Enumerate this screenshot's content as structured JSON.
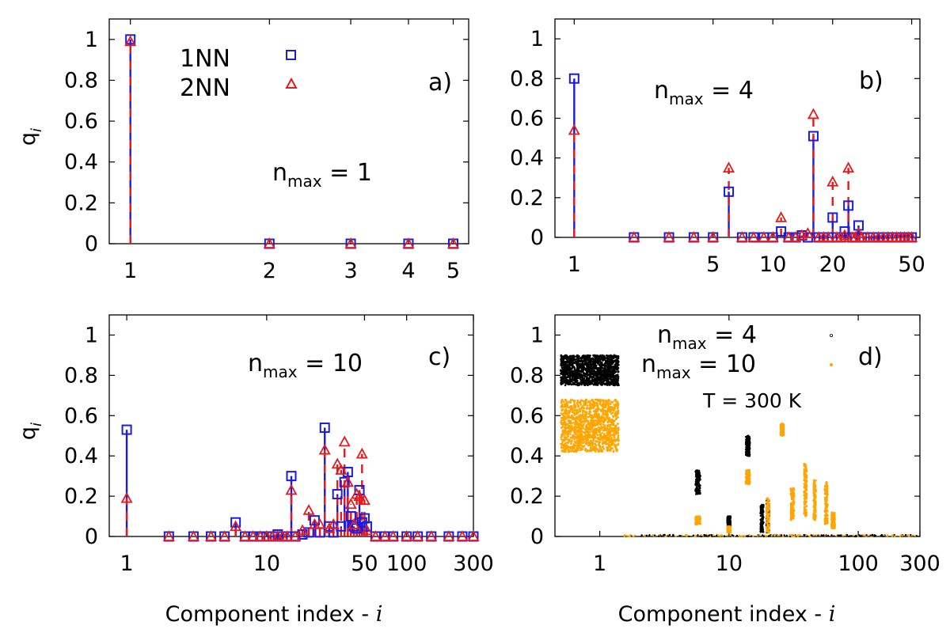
{
  "figure": {
    "ylabel": "q",
    "ylabel_sub": "i",
    "xlabel_prefix": "Component index - ",
    "xlabel_var": "i",
    "legend": {
      "s1": "1NN",
      "s2": "2NN"
    },
    "legend_d": {
      "s1": "4",
      "s2": "10"
    },
    "temperature": "T = 300 K",
    "colors": {
      "nn1": "#1a1ae6",
      "nn2": "#e61a1a",
      "nmax4": "#000000",
      "nmax10": "#ffa500"
    }
  },
  "chart_data": [
    {
      "type": "scatter",
      "panel": "a)",
      "annotation": {
        "prefix": "n",
        "sub": "max",
        "value": "= 1"
      },
      "xscale": "log",
      "xlim": [
        0.9,
        5.4
      ],
      "ylim": [
        0,
        1.1
      ],
      "xticks": [
        1,
        2,
        3,
        4,
        5
      ],
      "xtick_labels": [
        "1",
        "2",
        "3",
        "4",
        "5"
      ],
      "yticks": [
        0,
        0.2,
        0.4,
        0.6,
        0.8,
        1
      ],
      "ytick_labels": [
        "0",
        "0.2",
        "0.4",
        "0.6",
        "0.8",
        "1"
      ],
      "series": [
        {
          "name": "1NN",
          "marker": "square",
          "points": [
            [
              1,
              1.0
            ],
            [
              2,
              0
            ],
            [
              3,
              0
            ],
            [
              4,
              0
            ],
            [
              5,
              0
            ]
          ]
        },
        {
          "name": "2NN",
          "marker": "triangle",
          "points": [
            [
              1,
              0.99
            ],
            [
              2,
              0
            ],
            [
              3,
              0
            ],
            [
              4,
              0
            ],
            [
              5,
              0
            ]
          ]
        }
      ]
    },
    {
      "type": "scatter",
      "panel": "b)",
      "annotation": {
        "prefix": "n",
        "sub": "max",
        "value": "= 4"
      },
      "xscale": "log",
      "xlim": [
        0.8,
        55
      ],
      "ylim": [
        0,
        1.1
      ],
      "xticks": [
        1,
        5,
        10,
        20,
        50
      ],
      "xtick_labels": [
        "1",
        "5",
        "10",
        "20",
        "50"
      ],
      "yticks": [
        0,
        0.2,
        0.4,
        0.6,
        0.8,
        1
      ],
      "ytick_labels": [
        "0",
        "0.2",
        "0.4",
        "0.6",
        "0.8",
        "1"
      ],
      "series": [
        {
          "name": "1NN",
          "marker": "square",
          "points": [
            [
              1,
              0.8
            ],
            [
              2,
              0
            ],
            [
              3,
              0
            ],
            [
              4,
              0
            ],
            [
              5,
              0
            ],
            [
              6,
              0.23
            ],
            [
              7,
              0
            ],
            [
              8,
              0
            ],
            [
              9,
              0
            ],
            [
              10,
              0
            ],
            [
              11,
              0.03
            ],
            [
              12,
              0
            ],
            [
              13,
              0
            ],
            [
              14,
              0.01
            ],
            [
              15,
              0
            ],
            [
              16,
              0.51
            ],
            [
              17,
              0
            ],
            [
              18,
              0
            ],
            [
              19,
              0
            ],
            [
              20,
              0.1
            ],
            [
              21,
              0
            ],
            [
              22,
              0
            ],
            [
              23,
              0.03
            ],
            [
              24,
              0.16
            ],
            [
              25,
              0
            ],
            [
              26,
              0
            ],
            [
              27,
              0.06
            ],
            [
              28,
              0
            ],
            [
              30,
              0
            ],
            [
              32,
              0
            ],
            [
              34,
              0
            ],
            [
              36,
              0
            ],
            [
              38,
              0
            ],
            [
              40,
              0
            ],
            [
              42,
              0
            ],
            [
              44,
              0
            ],
            [
              46,
              0
            ],
            [
              48,
              0
            ],
            [
              50,
              0
            ]
          ]
        },
        {
          "name": "2NN",
          "marker": "triangle",
          "points": [
            [
              1,
              0.54
            ],
            [
              2,
              0
            ],
            [
              3,
              0
            ],
            [
              4,
              0
            ],
            [
              5,
              0
            ],
            [
              6,
              0.35
            ],
            [
              7,
              0
            ],
            [
              8,
              0
            ],
            [
              9,
              0
            ],
            [
              10,
              0
            ],
            [
              11,
              0.1
            ],
            [
              12,
              0
            ],
            [
              13,
              0
            ],
            [
              14,
              0.01
            ],
            [
              15,
              0.02
            ],
            [
              16,
              0.62
            ],
            [
              17,
              0
            ],
            [
              18,
              0
            ],
            [
              19,
              0
            ],
            [
              20,
              0.28
            ],
            [
              21,
              0
            ],
            [
              22,
              0
            ],
            [
              23,
              0.01
            ],
            [
              24,
              0.35
            ],
            [
              25,
              0
            ],
            [
              26,
              0
            ],
            [
              27,
              0.02
            ],
            [
              28,
              0
            ],
            [
              30,
              0
            ],
            [
              32,
              0
            ],
            [
              34,
              0
            ],
            [
              36,
              0
            ],
            [
              38,
              0
            ],
            [
              40,
              0
            ],
            [
              42,
              0
            ],
            [
              44,
              0
            ],
            [
              46,
              0
            ],
            [
              48,
              0
            ],
            [
              50,
              0
            ]
          ]
        }
      ]
    },
    {
      "type": "scatter",
      "panel": "c)",
      "annotation": {
        "prefix": "n",
        "sub": "max",
        "value": "= 10"
      },
      "xscale": "log",
      "xlim": [
        0.75,
        300
      ],
      "ylim": [
        0,
        1.1
      ],
      "xticks": [
        1,
        10,
        50,
        100,
        300
      ],
      "xtick_labels": [
        "1",
        "10",
        "50",
        "100",
        "300"
      ],
      "yticks": [
        0,
        0.2,
        0.4,
        0.6,
        0.8,
        1
      ],
      "ytick_labels": [
        "0",
        "0.2",
        "0.4",
        "0.6",
        "0.8",
        "1"
      ],
      "series": [
        {
          "name": "1NN",
          "marker": "square",
          "points": [
            [
              1,
              0.53
            ],
            [
              2,
              0
            ],
            [
              3,
              0
            ],
            [
              4,
              0
            ],
            [
              5,
              0
            ],
            [
              6,
              0.07
            ],
            [
              7,
              0
            ],
            [
              8,
              0
            ],
            [
              9,
              0
            ],
            [
              10,
              0
            ],
            [
              11,
              0
            ],
            [
              12,
              0.01
            ],
            [
              13,
              0
            ],
            [
              14,
              0
            ],
            [
              15,
              0.3
            ],
            [
              16,
              0
            ],
            [
              18,
              0.01
            ],
            [
              20,
              0.02
            ],
            [
              22,
              0.08
            ],
            [
              24,
              0.02
            ],
            [
              26,
              0.54
            ],
            [
              28,
              0.05
            ],
            [
              30,
              0.02
            ],
            [
              32,
              0.21
            ],
            [
              34,
              0.05
            ],
            [
              36,
              0.27
            ],
            [
              38,
              0.32
            ],
            [
              40,
              0.1
            ],
            [
              42,
              0.05
            ],
            [
              44,
              0.04
            ],
            [
              46,
              0.23
            ],
            [
              48,
              0.07
            ],
            [
              50,
              0.09
            ],
            [
              52,
              0.05
            ],
            [
              60,
              0
            ],
            [
              70,
              0
            ],
            [
              80,
              0
            ],
            [
              100,
              0
            ],
            [
              120,
              0
            ],
            [
              150,
              0
            ],
            [
              200,
              0
            ],
            [
              250,
              0
            ],
            [
              300,
              0
            ]
          ]
        },
        {
          "name": "2NN",
          "marker": "triangle",
          "points": [
            [
              1,
              0.19
            ],
            [
              2,
              0
            ],
            [
              3,
              0
            ],
            [
              4,
              0
            ],
            [
              5,
              0
            ],
            [
              6,
              0.05
            ],
            [
              7,
              0
            ],
            [
              8,
              0
            ],
            [
              9,
              0
            ],
            [
              10,
              0
            ],
            [
              11,
              0
            ],
            [
              12,
              0
            ],
            [
              13,
              0
            ],
            [
              14,
              0
            ],
            [
              15,
              0.23
            ],
            [
              16,
              0
            ],
            [
              18,
              0.03
            ],
            [
              20,
              0.13
            ],
            [
              22,
              0.06
            ],
            [
              24,
              0.06
            ],
            [
              26,
              0.43
            ],
            [
              28,
              0.04
            ],
            [
              30,
              0.06
            ],
            [
              32,
              0.36
            ],
            [
              34,
              0.33
            ],
            [
              36,
              0.47
            ],
            [
              38,
              0.27
            ],
            [
              40,
              0.16
            ],
            [
              42,
              0.06
            ],
            [
              44,
              0.21
            ],
            [
              46,
              0.2
            ],
            [
              48,
              0.41
            ],
            [
              50,
              0.18
            ],
            [
              52,
              0.03
            ],
            [
              60,
              0
            ],
            [
              70,
              0
            ],
            [
              80,
              0
            ],
            [
              100,
              0
            ],
            [
              120,
              0
            ],
            [
              150,
              0
            ],
            [
              200,
              0
            ],
            [
              250,
              0
            ],
            [
              300,
              0
            ]
          ]
        }
      ]
    },
    {
      "type": "scatter",
      "panel": "d)",
      "annotation": {
        "prefix": "n",
        "sub": "max",
        "value": "= 4"
      },
      "xscale": "log",
      "xlim": [
        0.45,
        300
      ],
      "ylim": [
        0,
        1.1
      ],
      "xticks": [
        1,
        10,
        100,
        300
      ],
      "xtick_labels": [
        "1",
        "10",
        "100",
        "300"
      ],
      "yticks": [
        0,
        0.2,
        0.4,
        0.6,
        0.8,
        1
      ],
      "ytick_labels": [
        "0",
        "0.2",
        "0.4",
        "0.6",
        "0.8",
        "1"
      ],
      "series": [
        {
          "name": "nmax = 4",
          "marker": "dot",
          "clusters": [
            {
              "x": [
                0.5,
                1.4
              ],
              "y": [
                0.75,
                0.9
              ]
            },
            {
              "x": [
                5.5,
                6.0
              ],
              "y": [
                0.21,
                0.33
              ]
            },
            {
              "x": [
                9.7,
                10.3
              ],
              "y": [
                0.04,
                0.1
              ]
            },
            {
              "x": [
                13.5,
                14.5
              ],
              "y": [
                0.4,
                0.5
              ]
            },
            {
              "x": [
                17.5,
                18.5
              ],
              "y": [
                0.02,
                0.16
              ]
            },
            {
              "x": [
                19.5,
                20.5
              ],
              "y": [
                0.02,
                0.18
              ]
            }
          ]
        },
        {
          "name": "nmax = 10",
          "marker": "dot",
          "clusters": [
            {
              "x": [
                0.5,
                1.4
              ],
              "y": [
                0.42,
                0.68
              ]
            },
            {
              "x": [
                5.5,
                6.0
              ],
              "y": [
                0.06,
                0.1
              ]
            },
            {
              "x": [
                9.7,
                10.3
              ],
              "y": [
                0.02,
                0.05
              ]
            },
            {
              "x": [
                13.5,
                14.5
              ],
              "y": [
                0.26,
                0.33
              ]
            },
            {
              "x": [
                19.5,
                20.5
              ],
              "y": [
                0.02,
                0.19
              ]
            },
            {
              "x": [
                25,
                26.5
              ],
              "y": [
                0.5,
                0.56
              ]
            },
            {
              "x": [
                30,
                32
              ],
              "y": [
                0.08,
                0.24
              ]
            },
            {
              "x": [
                38,
                40
              ],
              "y": [
                0.1,
                0.36
              ]
            },
            {
              "x": [
                45,
                47
              ],
              "y": [
                0.08,
                0.28
              ]
            },
            {
              "x": [
                55,
                58
              ],
              "y": [
                0.06,
                0.27
              ]
            },
            {
              "x": [
                62,
                66
              ],
              "y": [
                0.04,
                0.12
              ]
            }
          ]
        }
      ]
    }
  ]
}
